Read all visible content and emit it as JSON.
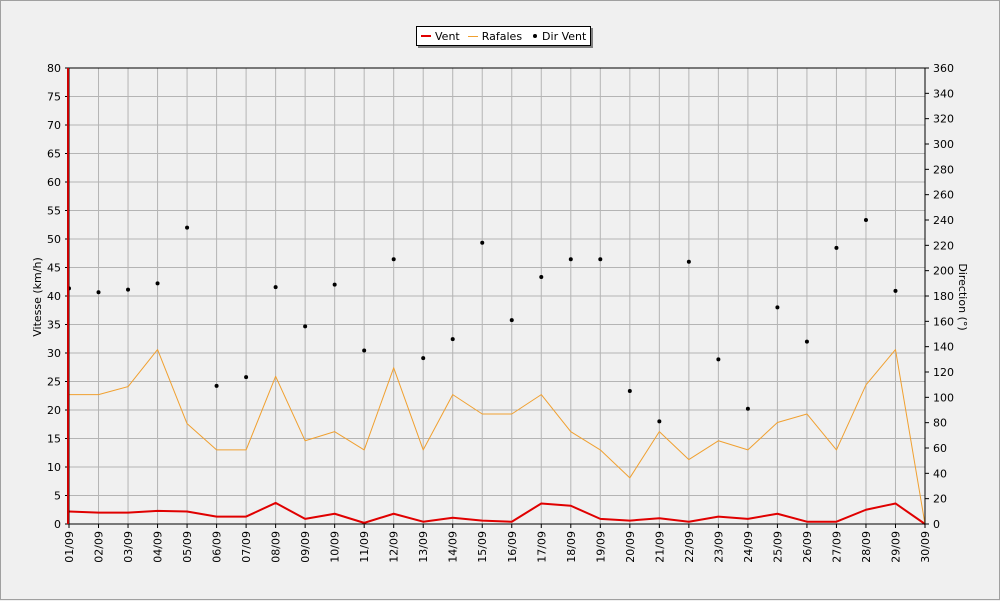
{
  "chart_data": {
    "type": "line",
    "title": "",
    "categories": [
      "01/09",
      "02/09",
      "03/09",
      "04/09",
      "05/09",
      "06/09",
      "07/09",
      "08/09",
      "09/09",
      "10/09",
      "11/09",
      "12/09",
      "13/09",
      "14/09",
      "15/09",
      "16/09",
      "17/09",
      "18/09",
      "19/09",
      "20/09",
      "21/09",
      "22/09",
      "23/09",
      "24/09",
      "25/09",
      "26/09",
      "27/09",
      "28/09",
      "29/09",
      "30/09"
    ],
    "ylabel": "Vitesse (km/h)",
    "ylim": [
      0,
      80
    ],
    "yticks": [
      0,
      5,
      10,
      15,
      20,
      25,
      30,
      35,
      40,
      45,
      50,
      55,
      60,
      65,
      70,
      75,
      80
    ],
    "y2label": "Direction (°)",
    "y2lim": [
      0,
      360
    ],
    "y2ticks": [
      0,
      20,
      40,
      60,
      80,
      100,
      120,
      140,
      160,
      180,
      200,
      220,
      240,
      260,
      280,
      300,
      320,
      340,
      360
    ],
    "grid": true,
    "legend_position": "top-center",
    "series": [
      {
        "name": "Vent",
        "kind": "line",
        "axis": "left",
        "color": "#e00000",
        "values": [
          2.2,
          2.0,
          2.0,
          2.3,
          2.2,
          1.3,
          1.3,
          3.7,
          0.9,
          1.8,
          0.2,
          1.8,
          0.4,
          1.1,
          0.6,
          0.4,
          3.6,
          3.2,
          0.9,
          0.6,
          1.0,
          0.4,
          1.3,
          0.9,
          1.8,
          0.4,
          0.4,
          2.5,
          3.6,
          0.0
        ]
      },
      {
        "name": "Rafales",
        "kind": "line",
        "axis": "left",
        "color": "#f0a030",
        "values": [
          22.7,
          22.7,
          24.1,
          30.6,
          17.6,
          13.0,
          13.0,
          25.9,
          14.6,
          16.2,
          13.0,
          27.4,
          13.0,
          22.7,
          19.3,
          19.3,
          22.7,
          16.2,
          13.0,
          8.1,
          16.2,
          11.3,
          14.6,
          13.0,
          17.8,
          19.3,
          13.0,
          24.4,
          30.6,
          0.0
        ]
      },
      {
        "name": "Dir Vent",
        "kind": "scatter",
        "axis": "right",
        "color": "#000000",
        "values": [
          186,
          183,
          185,
          190,
          234,
          109,
          116,
          187,
          156,
          189,
          137,
          209,
          131,
          146,
          222,
          161,
          195,
          209,
          209,
          105,
          81,
          207,
          130,
          91,
          171,
          144,
          218,
          240,
          184,
          null
        ]
      }
    ]
  }
}
